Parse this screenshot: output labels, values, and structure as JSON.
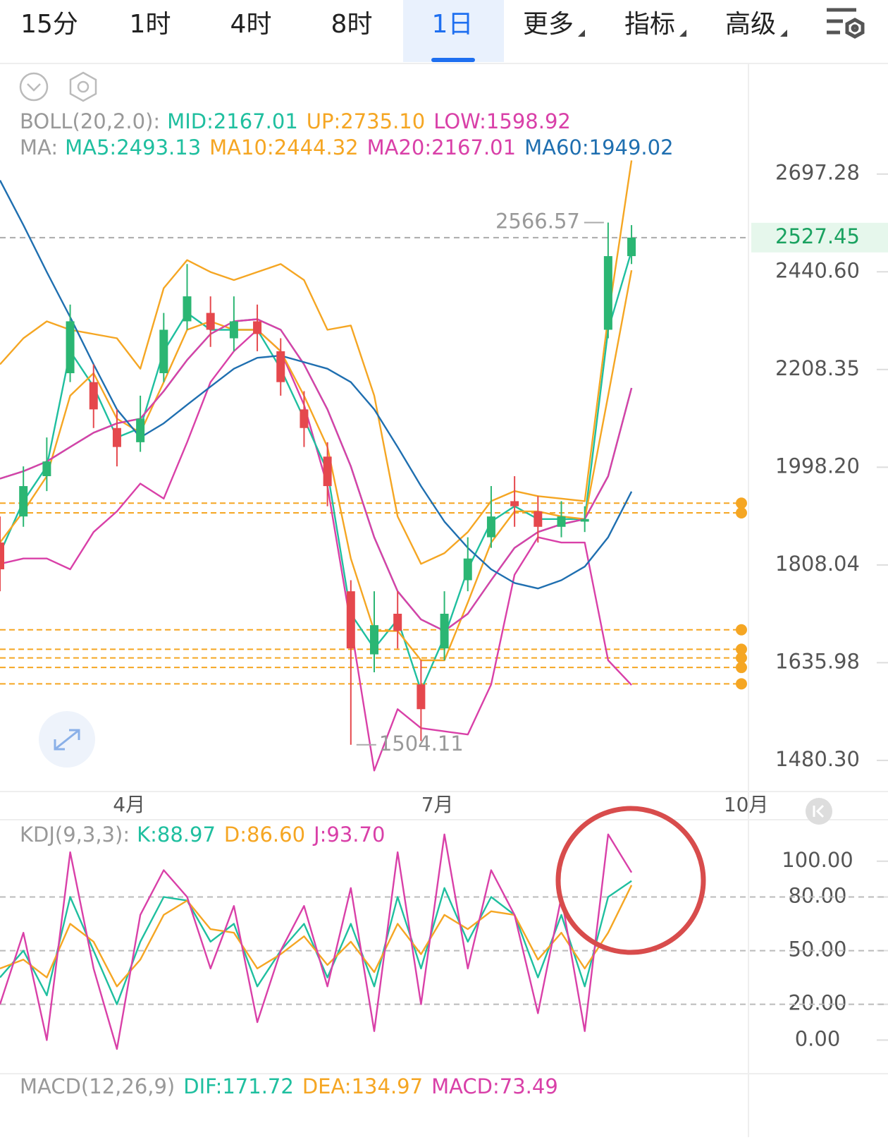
{
  "tabs": {
    "active": 4,
    "items": [
      {
        "label": "15分"
      },
      {
        "label": "1时"
      },
      {
        "label": "4时"
      },
      {
        "label": "8时"
      },
      {
        "label": "1日"
      },
      {
        "label": "更多",
        "menu": true
      },
      {
        "label": "指标",
        "menu": true
      },
      {
        "label": "高级",
        "menu": true
      }
    ]
  },
  "chart_data": [
    {
      "type": "candlestick",
      "log_scale": true,
      "xlim": [
        0,
        160
      ],
      "ylim": [
        1436,
        3016
      ],
      "xticks": [
        {
          "value": 27.6,
          "label": "4月"
        },
        {
          "value": 93.5,
          "label": "7月"
        },
        {
          "value": 159.5,
          "label": "10月"
        }
      ],
      "yticks": [
        2697.28,
        {
          "value": 2440.6,
          "label": "2440.60"
        },
        2208.35,
        {
          "value": 1998.2,
          "label": "1998.20"
        },
        1808.04,
        1635.98,
        {
          "value": 1480.3,
          "label": "1480.30"
        }
      ],
      "x": [
        0,
        5,
        10,
        15,
        20,
        25,
        30,
        35,
        40,
        45,
        50,
        55,
        60,
        65,
        70,
        75,
        80,
        85,
        90,
        95,
        100,
        105,
        110,
        115,
        120,
        125,
        130,
        135
      ],
      "candles": {
        "up_color": "#2bb673",
        "down_color": "#e5484d",
        "open": [
          1850,
          1900,
          1980,
          2200,
          2180,
          2080,
          2050,
          2200,
          2320,
          2340,
          2280,
          2320,
          2250,
          2120,
          2020,
          1760,
          1650,
          1720,
          1600,
          1660,
          1780,
          1860,
          1930,
          1910,
          1880,
          1890,
          2300,
          2480
        ],
        "close": [
          1800,
          1960,
          2010,
          2320,
          2120,
          2040,
          2100,
          2300,
          2380,
          2300,
          2320,
          2290,
          2180,
          2080,
          1960,
          1660,
          1700,
          1690,
          1560,
          1720,
          1820,
          1900,
          1920,
          1880,
          1900,
          1895,
          2480,
          2527.45
        ],
        "high": [
          1900,
          2000,
          2060,
          2360,
          2220,
          2120,
          2150,
          2340,
          2460,
          2380,
          2380,
          2360,
          2280,
          2160,
          2050,
          1780,
          1760,
          1760,
          1640,
          1760,
          1860,
          1960,
          1980,
          1940,
          1930,
          1920,
          2566.57,
          2560
        ],
        "low": [
          1760,
          1880,
          1950,
          2180,
          2080,
          2000,
          2030,
          2180,
          2300,
          2260,
          2250,
          2250,
          2150,
          2040,
          1920,
          1504.11,
          1620,
          1660,
          1510,
          1640,
          1760,
          1840,
          1880,
          1850,
          1860,
          1870,
          2280,
          2460
        ]
      },
      "indicators": [
        {
          "title": "BOLL(20,2.0):",
          "series": [
            {
              "name": "MID:",
              "color": "#1fbf9f",
              "values": [
                1975,
                1990,
                2010,
                2040,
                2070,
                2090,
                2100,
                2160,
                2230,
                2290,
                2320,
                2325,
                2300,
                2220,
                2120,
                2000,
                1860,
                1760,
                1710,
                1690,
                1720,
                1780,
                1840,
                1870,
                1885,
                1895,
                1980,
                2167.01
              ]
            },
            {
              "name": "UP:",
              "color": "#f5a623",
              "values": [
                2220,
                2280,
                2320,
                2300,
                2290,
                2280,
                2210,
                2400,
                2470,
                2440,
                2420,
                2440,
                2460,
                2420,
                2300,
                2310,
                2150,
                1900,
                1810,
                1830,
                1870,
                1930,
                1950,
                1940,
                1935,
                1930,
                2330,
                2735.1
              ],
              "value_labels": [
                null,
                null,
                null,
                null,
                null,
                null,
                null,
                null,
                null,
                null,
                null,
                null,
                null,
                null,
                null,
                null,
                null,
                null,
                null,
                null,
                null,
                null,
                null,
                null,
                null,
                null,
                null,
                "2735.10"
              ]
            },
            {
              "name": "LOW:",
              "color": "#d940a8",
              "values": [
                1810,
                1820,
                1820,
                1800,
                1870,
                1910,
                1965,
                1935,
                2050,
                2180,
                2250,
                2300,
                2250,
                2130,
                1960,
                1700,
                1465,
                1560,
                1530,
                1525,
                1520,
                1600,
                1790,
                1860,
                1850,
                1850,
                1640,
                1598.92
              ]
            }
          ]
        },
        {
          "title": "MA:",
          "series": [
            {
              "name": "MA5:",
              "color": "#1fbf9f",
              "values": [
                1830,
                1930,
                2000,
                2250,
                2170,
                2060,
                2080,
                2250,
                2340,
                2300,
                2300,
                2300,
                2210,
                2100,
                1990,
                1720,
                1660,
                1710,
                1590,
                1680,
                1800,
                1890,
                1920,
                1895,
                1895,
                1895,
                2300,
                2493.13
              ]
            },
            {
              "name": "MA10:",
              "color": "#f5a623",
              "values": [
                1850,
                1910,
                1980,
                2150,
                2200,
                2100,
                2070,
                2180,
                2300,
                2320,
                2300,
                2300,
                2250,
                2150,
                2040,
                1820,
                1690,
                1690,
                1640,
                1640,
                1740,
                1850,
                1910,
                1910,
                1900,
                1895,
                2150,
                2444.32
              ]
            },
            {
              "name": "MA20:",
              "color": "#d940a8",
              "values": [
                1975,
                1990,
                2010,
                2040,
                2070,
                2090,
                2100,
                2160,
                2230,
                2290,
                2320,
                2325,
                2300,
                2220,
                2120,
                2000,
                1860,
                1760,
                1710,
                1690,
                1720,
                1780,
                1840,
                1870,
                1885,
                1895,
                1980,
                2167.01
              ]
            },
            {
              "name": "MA60:",
              "color": "#1f6fb0",
              "values": [
                2680,
                2560,
                2440,
                2330,
                2220,
                2120,
                2060,
                2090,
                2130,
                2170,
                2210,
                2235,
                2240,
                2225,
                2210,
                2180,
                2120,
                2040,
                1960,
                1890,
                1840,
                1800,
                1775,
                1765,
                1780,
                1805,
                1860,
                1949.02
              ]
            }
          ]
        }
      ],
      "current_price": {
        "value": 2527.45,
        "color": "#1aa260"
      },
      "annotations": [
        {
          "x": 130,
          "value": 2566.57,
          "side": "left"
        },
        {
          "x": 75,
          "value": 1504.11,
          "side": "right"
        }
      ],
      "price_lines": {
        "color": "#f5a623",
        "values": [
          1926,
          1907,
          1692,
          1658.6,
          1644,
          1628,
          1601
        ]
      }
    },
    {
      "type": "line",
      "title": "KDJ(9,3,3):",
      "xlim": [
        0,
        160
      ],
      "ylim": [
        -18,
        122
      ],
      "yticks": [
        {
          "value": 100,
          "label": "100.00"
        },
        {
          "value": 80,
          "label": "80.00"
        },
        {
          "value": 50,
          "label": "50.00"
        },
        {
          "value": 20,
          "label": "20.00"
        },
        {
          "value": 0,
          "label": "0.00"
        }
      ],
      "grid_lines": [
        80,
        50,
        20
      ],
      "x": [
        0,
        5,
        10,
        15,
        20,
        25,
        30,
        35,
        40,
        45,
        50,
        55,
        60,
        65,
        70,
        75,
        80,
        85,
        90,
        95,
        100,
        105,
        110,
        115,
        120,
        125,
        130,
        135
      ],
      "series": [
        {
          "name": "K:",
          "color": "#1fbf9f",
          "values": [
            35,
            50,
            25,
            80,
            50,
            20,
            55,
            80,
            78,
            55,
            65,
            30,
            50,
            65,
            35,
            65,
            30,
            80,
            40,
            85,
            55,
            80,
            70,
            35,
            70,
            30,
            80,
            88.97
          ]
        },
        {
          "name": "D:",
          "color": "#f5a623",
          "values": [
            40,
            45,
            35,
            65,
            55,
            30,
            45,
            70,
            78,
            62,
            60,
            40,
            48,
            58,
            42,
            55,
            38,
            65,
            48,
            70,
            62,
            72,
            70,
            45,
            60,
            40,
            60,
            86.6
          ],
          "value_labels": [
            null,
            null,
            null,
            null,
            null,
            null,
            null,
            null,
            null,
            null,
            null,
            null,
            null,
            null,
            null,
            null,
            null,
            null,
            null,
            null,
            null,
            null,
            null,
            null,
            null,
            null,
            null,
            "86.60"
          ]
        },
        {
          "name": "J:",
          "color": "#d940a8",
          "values": [
            20,
            60,
            0,
            105,
            40,
            -5,
            70,
            95,
            80,
            40,
            75,
            10,
            50,
            75,
            30,
            85,
            5,
            105,
            20,
            115,
            40,
            95,
            70,
            15,
            80,
            5,
            115,
            93.7
          ],
          "value_labels": [
            null,
            null,
            null,
            null,
            null,
            null,
            null,
            null,
            null,
            null,
            null,
            null,
            null,
            null,
            null,
            null,
            null,
            null,
            null,
            null,
            null,
            null,
            null,
            null,
            null,
            null,
            null,
            "93.70"
          ]
        }
      ]
    }
  ],
  "macd": {
    "title": "MACD(12,26,9)",
    "readouts": [
      {
        "name": "DIF:",
        "value": 171.72,
        "color": "#1fbf9f"
      },
      {
        "name": "DEA:",
        "value": 134.97,
        "color": "#f5a623"
      },
      {
        "name": "MACD:",
        "value": 73.49,
        "color": "#d940a8"
      }
    ]
  }
}
